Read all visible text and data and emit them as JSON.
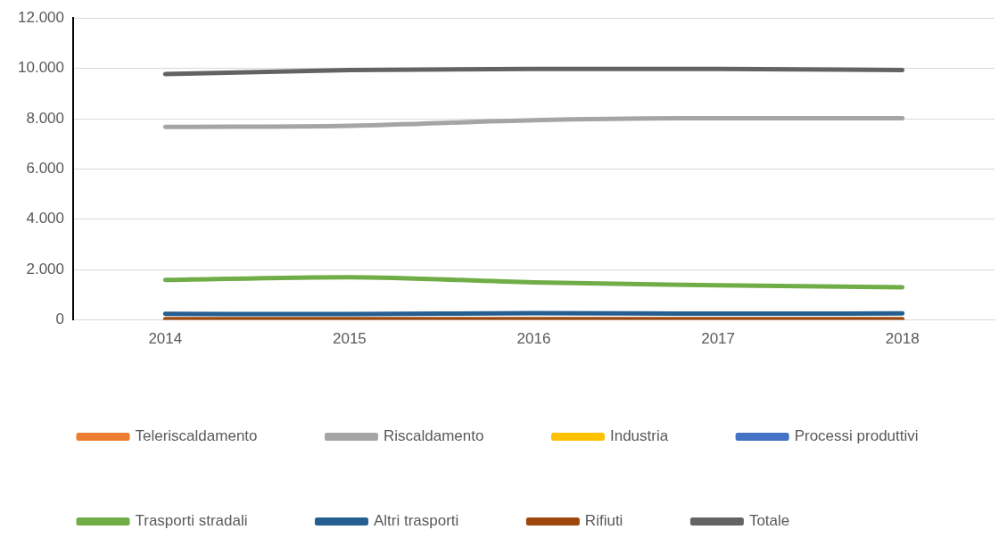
{
  "chart_data": {
    "type": "line",
    "categories": [
      "2014",
      "2015",
      "2016",
      "2017",
      "2018"
    ],
    "series": [
      {
        "name": "Teleriscaldamento",
        "color": "#ed7d31",
        "values": [
          null,
          null,
          null,
          null,
          null
        ]
      },
      {
        "name": "Riscaldamento",
        "color": "#a5a5a5",
        "values": [
          7670,
          7720,
          7940,
          8020,
          8020
        ]
      },
      {
        "name": "Industria",
        "color": "#ffc000",
        "values": [
          null,
          null,
          null,
          null,
          null
        ]
      },
      {
        "name": "Processi produttivi",
        "color": "#4472c4",
        "values": [
          null,
          null,
          null,
          null,
          null
        ]
      },
      {
        "name": "Trasporti stradali",
        "color": "#70ad47",
        "values": [
          1590,
          1700,
          1490,
          1380,
          1300
        ]
      },
      {
        "name": "Altri trasporti",
        "color": "#255e91",
        "values": [
          240,
          230,
          270,
          250,
          260
        ]
      },
      {
        "name": "Rifiuti",
        "color": "#9e480e",
        "values": [
          30,
          30,
          30,
          30,
          30
        ]
      },
      {
        "name": "Totale",
        "color": "#636363",
        "values": [
          9770,
          9930,
          9980,
          9980,
          9930
        ]
      }
    ],
    "ylim": [
      0,
      12000
    ],
    "yticks": [
      {
        "value": 0,
        "label": "0"
      },
      {
        "value": 2000,
        "label": "2.000"
      },
      {
        "value": 4000,
        "label": "4.000"
      },
      {
        "value": 6000,
        "label": "6.000"
      },
      {
        "value": 8000,
        "label": "8.000"
      },
      {
        "value": 10000,
        "label": "10.000"
      },
      {
        "value": 12000,
        "label": "12.000"
      }
    ],
    "grid": "y",
    "legend": "bottom",
    "marker": "none",
    "line_style": "solid"
  }
}
